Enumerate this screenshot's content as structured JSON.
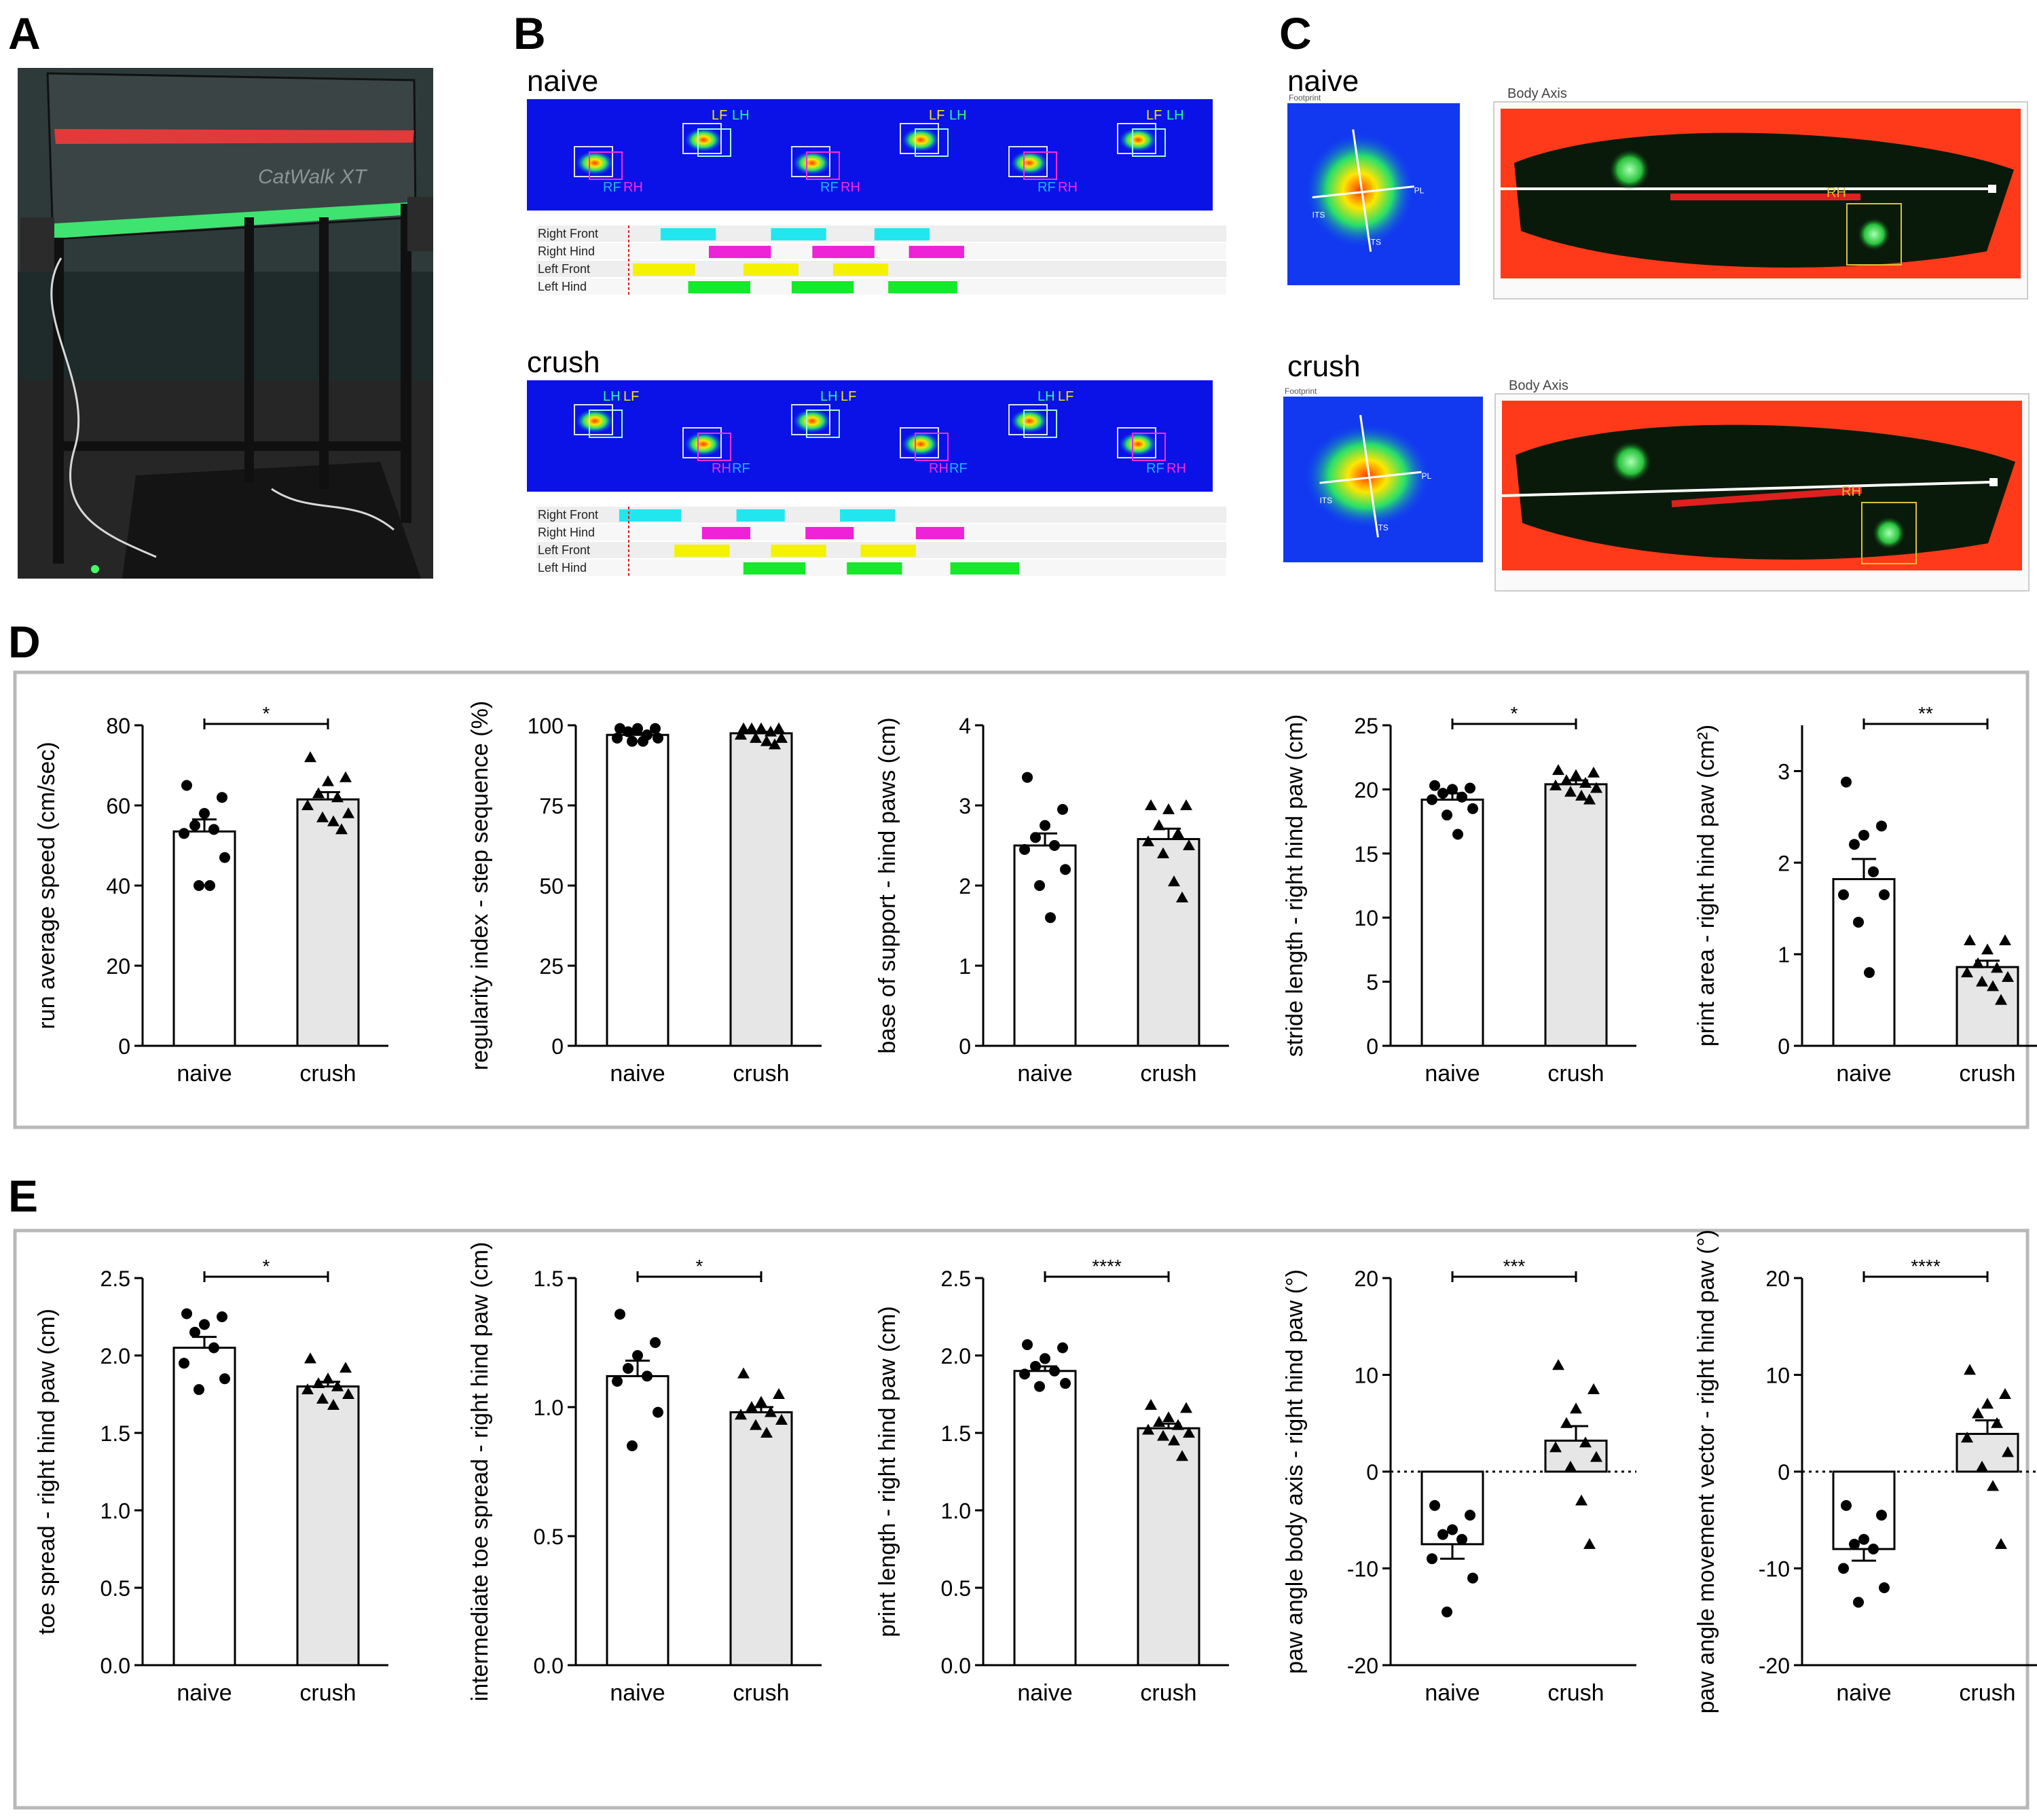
{
  "panels": {
    "A": {
      "letter": "A",
      "brand": "CatWalk XT"
    },
    "B": {
      "letter": "B",
      "groups": [
        {
          "title": "naive",
          "footprints": [
            {
              "labels": [
                "RF",
                "RH"
              ],
              "row": "low"
            },
            {
              "labels": [
                "LF",
                "LH"
              ],
              "row": "high"
            },
            {
              "labels": [
                "RF",
                "RH"
              ],
              "row": "low"
            },
            {
              "labels": [
                "LF",
                "LH"
              ],
              "row": "high"
            },
            {
              "labels": [
                "RF",
                "RH"
              ],
              "row": "low"
            },
            {
              "labels": [
                "LF",
                "LH"
              ],
              "row": "high"
            }
          ],
          "rows": [
            {
              "label": "Right Front",
              "color": "#22e6ee",
              "bars": [
                [
                  0.18,
                  0.26
                ],
                [
                  0.34,
                  0.42
                ],
                [
                  0.49,
                  0.57
                ]
              ]
            },
            {
              "label": "Right Hind",
              "color": "#ee22d6",
              "bars": [
                [
                  0.25,
                  0.34
                ],
                [
                  0.4,
                  0.49
                ],
                [
                  0.54,
                  0.62
                ]
              ]
            },
            {
              "label": "Left Front",
              "color": "#f4f200",
              "bars": [
                [
                  0.14,
                  0.23
                ],
                [
                  0.3,
                  0.38
                ],
                [
                  0.43,
                  0.51
                ]
              ]
            },
            {
              "label": "Left Hind",
              "color": "#16e82a",
              "bars": [
                [
                  0.22,
                  0.31
                ],
                [
                  0.37,
                  0.46
                ],
                [
                  0.51,
                  0.61
                ]
              ]
            }
          ]
        },
        {
          "title": "crush",
          "footprints": [
            {
              "labels": [
                "LH",
                "LF"
              ],
              "row": "high"
            },
            {
              "labels": [
                "RH",
                "RF"
              ],
              "row": "low"
            },
            {
              "labels": [
                "LH",
                "LF"
              ],
              "row": "high"
            },
            {
              "labels": [
                "RH",
                "RF"
              ],
              "row": "low"
            },
            {
              "labels": [
                "LH",
                "LF"
              ],
              "row": "high"
            },
            {
              "labels": [
                "RF",
                "RH"
              ],
              "row": "low"
            }
          ],
          "rows": [
            {
              "label": "Right Front",
              "color": "#22e6ee",
              "bars": [
                [
                  0.12,
                  0.21
                ],
                [
                  0.29,
                  0.36
                ],
                [
                  0.44,
                  0.52
                ]
              ]
            },
            {
              "label": "Right Hind",
              "color": "#ee22d6",
              "bars": [
                [
                  0.24,
                  0.31
                ],
                [
                  0.39,
                  0.46
                ],
                [
                  0.55,
                  0.62
                ]
              ]
            },
            {
              "label": "Left Front",
              "color": "#f4f200",
              "bars": [
                [
                  0.2,
                  0.28
                ],
                [
                  0.34,
                  0.42
                ],
                [
                  0.47,
                  0.55
                ]
              ]
            },
            {
              "label": "Left Hind",
              "color": "#16e82a",
              "bars": [
                [
                  0.3,
                  0.39
                ],
                [
                  0.45,
                  0.53
                ],
                [
                  0.6,
                  0.7
                ]
              ]
            }
          ]
        }
      ]
    },
    "C": {
      "letter": "C",
      "groups": [
        {
          "title": "naive",
          "footprint_header": "Footprint",
          "axis_title": "Body Axis",
          "paw_label": "RH",
          "toe_labels": [
            "ITS",
            "TS",
            "PL"
          ]
        },
        {
          "title": "crush",
          "footprint_header": "Footprint",
          "axis_title": "Body Axis",
          "paw_label": "RH",
          "toe_labels": [
            "ITS",
            "TS",
            "PL"
          ]
        }
      ]
    },
    "D": {
      "letter": "D"
    },
    "E": {
      "letter": "E"
    }
  },
  "chart_data": [
    {
      "panel": "D",
      "type": "bar",
      "categories": [
        "naive",
        "crush"
      ],
      "ylabel": "run average speed (cm/sec)",
      "ylim": [
        0,
        80
      ],
      "yticks": [
        0,
        20,
        40,
        60,
        80
      ],
      "tick_labels": [
        "0",
        "20",
        "40",
        "60",
        "80"
      ],
      "zero_line": false,
      "values": [
        53.5,
        61.5
      ],
      "sem": [
        3.0,
        1.8
      ],
      "significance": "*",
      "points": [
        [
          65,
          62,
          58,
          55,
          54,
          53,
          47,
          40,
          40
        ],
        [
          72,
          67,
          66,
          63,
          62,
          60,
          58,
          57,
          56,
          54
        ]
      ]
    },
    {
      "panel": "D",
      "type": "bar",
      "categories": [
        "naive",
        "crush"
      ],
      "ylabel": "regularity index - step sequence (%)",
      "ylim": [
        0,
        100
      ],
      "yticks": [
        0,
        25,
        50,
        75,
        100
      ],
      "tick_labels": [
        "0",
        "25",
        "50",
        "75",
        "100"
      ],
      "zero_line": false,
      "values": [
        97.0,
        97.5
      ],
      "sem": [
        0.6,
        0.5
      ],
      "significance": "",
      "points": [
        [
          99,
          99,
          99,
          98,
          97,
          96,
          96,
          95,
          95
        ],
        [
          99,
          99,
          99,
          99,
          98,
          97,
          96,
          96,
          95,
          94
        ]
      ]
    },
    {
      "panel": "D",
      "type": "bar",
      "categories": [
        "naive",
        "crush"
      ],
      "ylabel": "base of support - hind paws (cm)",
      "ylim": [
        0,
        4
      ],
      "yticks": [
        0,
        1,
        2,
        3,
        4
      ],
      "tick_labels": [
        "0",
        "1",
        "2",
        "3",
        "4"
      ],
      "zero_line": false,
      "values": [
        2.5,
        2.58
      ],
      "sem": [
        0.15,
        0.13
      ],
      "significance": "",
      "points": [
        [
          3.35,
          2.95,
          2.75,
          2.6,
          2.5,
          2.45,
          2.2,
          2.0,
          1.6
        ],
        [
          3.0,
          3.0,
          2.95,
          2.75,
          2.65,
          2.55,
          2.5,
          2.4,
          2.05,
          1.85
        ]
      ]
    },
    {
      "panel": "D",
      "type": "bar",
      "categories": [
        "naive",
        "crush"
      ],
      "ylabel": "stride length - right hind paw (cm)",
      "ylim": [
        0,
        25
      ],
      "yticks": [
        0,
        5,
        10,
        15,
        20,
        25
      ],
      "tick_labels": [
        "0",
        "5",
        "10",
        "15",
        "20",
        "25"
      ],
      "zero_line": false,
      "values": [
        19.2,
        20.4
      ],
      "sem": [
        0.5,
        0.3
      ],
      "significance": "*",
      "points": [
        [
          20.3,
          20.1,
          20.0,
          19.7,
          19.4,
          19.2,
          18.5,
          18.0,
          16.5
        ],
        [
          21.5,
          21.3,
          21.1,
          20.7,
          20.5,
          20.3,
          20.1,
          19.8,
          19.5,
          19.2
        ]
      ]
    },
    {
      "panel": "D",
      "type": "bar",
      "categories": [
        "naive",
        "crush"
      ],
      "ylabel": "print area - right hind paw (cm²)",
      "ylim": [
        0,
        3.5
      ],
      "yticks": [
        0,
        1,
        2,
        3
      ],
      "tick_labels": [
        "0",
        "1",
        "2",
        "3"
      ],
      "zero_line": false,
      "values": [
        1.82,
        0.86
      ],
      "sem": [
        0.22,
        0.07
      ],
      "significance": "**",
      "points": [
        [
          2.88,
          2.4,
          2.3,
          2.2,
          1.9,
          1.65,
          1.65,
          1.35,
          0.8
        ],
        [
          1.15,
          1.15,
          1.05,
          0.9,
          0.85,
          0.8,
          0.75,
          0.7,
          0.65,
          0.5
        ]
      ]
    },
    {
      "panel": "E",
      "type": "bar",
      "categories": [
        "naive",
        "crush"
      ],
      "ylabel": "toe spread - right hind paw (cm)",
      "ylim": [
        0,
        2.5
      ],
      "yticks": [
        0,
        0.5,
        1.0,
        1.5,
        2.0,
        2.5
      ],
      "tick_labels": [
        "0.0",
        "0.5",
        "1.0",
        "1.5",
        "2.0",
        "2.5"
      ],
      "zero_line": false,
      "values": [
        2.05,
        1.8
      ],
      "sem": [
        0.07,
        0.03
      ],
      "significance": "*",
      "points": [
        [
          2.27,
          2.25,
          2.2,
          2.15,
          2.05,
          1.95,
          1.85,
          1.78
        ],
        [
          1.98,
          1.92,
          1.85,
          1.82,
          1.8,
          1.78,
          1.75,
          1.72,
          1.68
        ]
      ]
    },
    {
      "panel": "E",
      "type": "bar",
      "categories": [
        "naive",
        "crush"
      ],
      "ylabel": "intermediate toe spread - right hind paw (cm)",
      "ylim": [
        0,
        1.5
      ],
      "yticks": [
        0,
        0.5,
        1.0,
        1.5
      ],
      "tick_labels": [
        "0.0",
        "0.5",
        "1.0",
        "1.5"
      ],
      "zero_line": false,
      "values": [
        1.12,
        0.98
      ],
      "sem": [
        0.06,
        0.02
      ],
      "significance": "*",
      "points": [
        [
          1.36,
          1.25,
          1.2,
          1.15,
          1.12,
          1.1,
          0.98,
          0.85
        ],
        [
          1.13,
          1.05,
          1.02,
          1.0,
          0.98,
          0.97,
          0.95,
          0.93,
          0.9
        ]
      ]
    },
    {
      "panel": "E",
      "type": "bar",
      "categories": [
        "naive",
        "crush"
      ],
      "ylabel": "print length - right hind paw (cm)",
      "ylim": [
        0,
        2.5
      ],
      "yticks": [
        0,
        0.5,
        1.0,
        1.5,
        2.0,
        2.5
      ],
      "tick_labels": [
        "0.0",
        "0.5",
        "1.0",
        "1.5",
        "2.0",
        "2.5"
      ],
      "zero_line": false,
      "values": [
        1.9,
        1.53
      ],
      "sem": [
        0.03,
        0.03
      ],
      "significance": "****",
      "points": [
        [
          2.07,
          2.05,
          1.98,
          1.93,
          1.9,
          1.88,
          1.82,
          1.8
        ],
        [
          1.68,
          1.66,
          1.6,
          1.57,
          1.55,
          1.52,
          1.5,
          1.48,
          1.45,
          1.35
        ]
      ]
    },
    {
      "panel": "E",
      "type": "bar",
      "categories": [
        "naive",
        "crush"
      ],
      "ylabel": "paw angle body axis - right hind paw (°)",
      "ylim": [
        -20,
        20
      ],
      "yticks": [
        -20,
        -10,
        0,
        10,
        20
      ],
      "tick_labels": [
        "-20",
        "-10",
        "0",
        "10",
        "20"
      ],
      "zero_line": true,
      "values": [
        -7.5,
        3.2
      ],
      "sem": [
        1.5,
        1.5
      ],
      "significance": "***",
      "points": [
        [
          -3.5,
          -4.5,
          -6.0,
          -6.5,
          -7.0,
          -9.0,
          -11.0,
          -14.5
        ],
        [
          11.0,
          8.5,
          6.5,
          5.0,
          3.0,
          2.5,
          1.5,
          0.5,
          -3.0,
          -7.5
        ]
      ]
    },
    {
      "panel": "E",
      "type": "bar",
      "categories": [
        "naive",
        "crush"
      ],
      "ylabel": "paw angle movement vector - right hind paw (°)",
      "ylim": [
        -20,
        20
      ],
      "yticks": [
        -20,
        -10,
        0,
        10,
        20
      ],
      "tick_labels": [
        "-20",
        "-10",
        "0",
        "10",
        "20"
      ],
      "zero_line": true,
      "values": [
        -8.0,
        3.9
      ],
      "sem": [
        1.2,
        1.4
      ],
      "significance": "****",
      "points": [
        [
          -3.5,
          -4.5,
          -7.0,
          -7.5,
          -8.0,
          -10.0,
          -12.0,
          -13.5
        ],
        [
          10.5,
          8.0,
          7.0,
          6.0,
          5.0,
          3.5,
          2.0,
          0.5,
          -1.5,
          -7.5
        ]
      ]
    }
  ]
}
